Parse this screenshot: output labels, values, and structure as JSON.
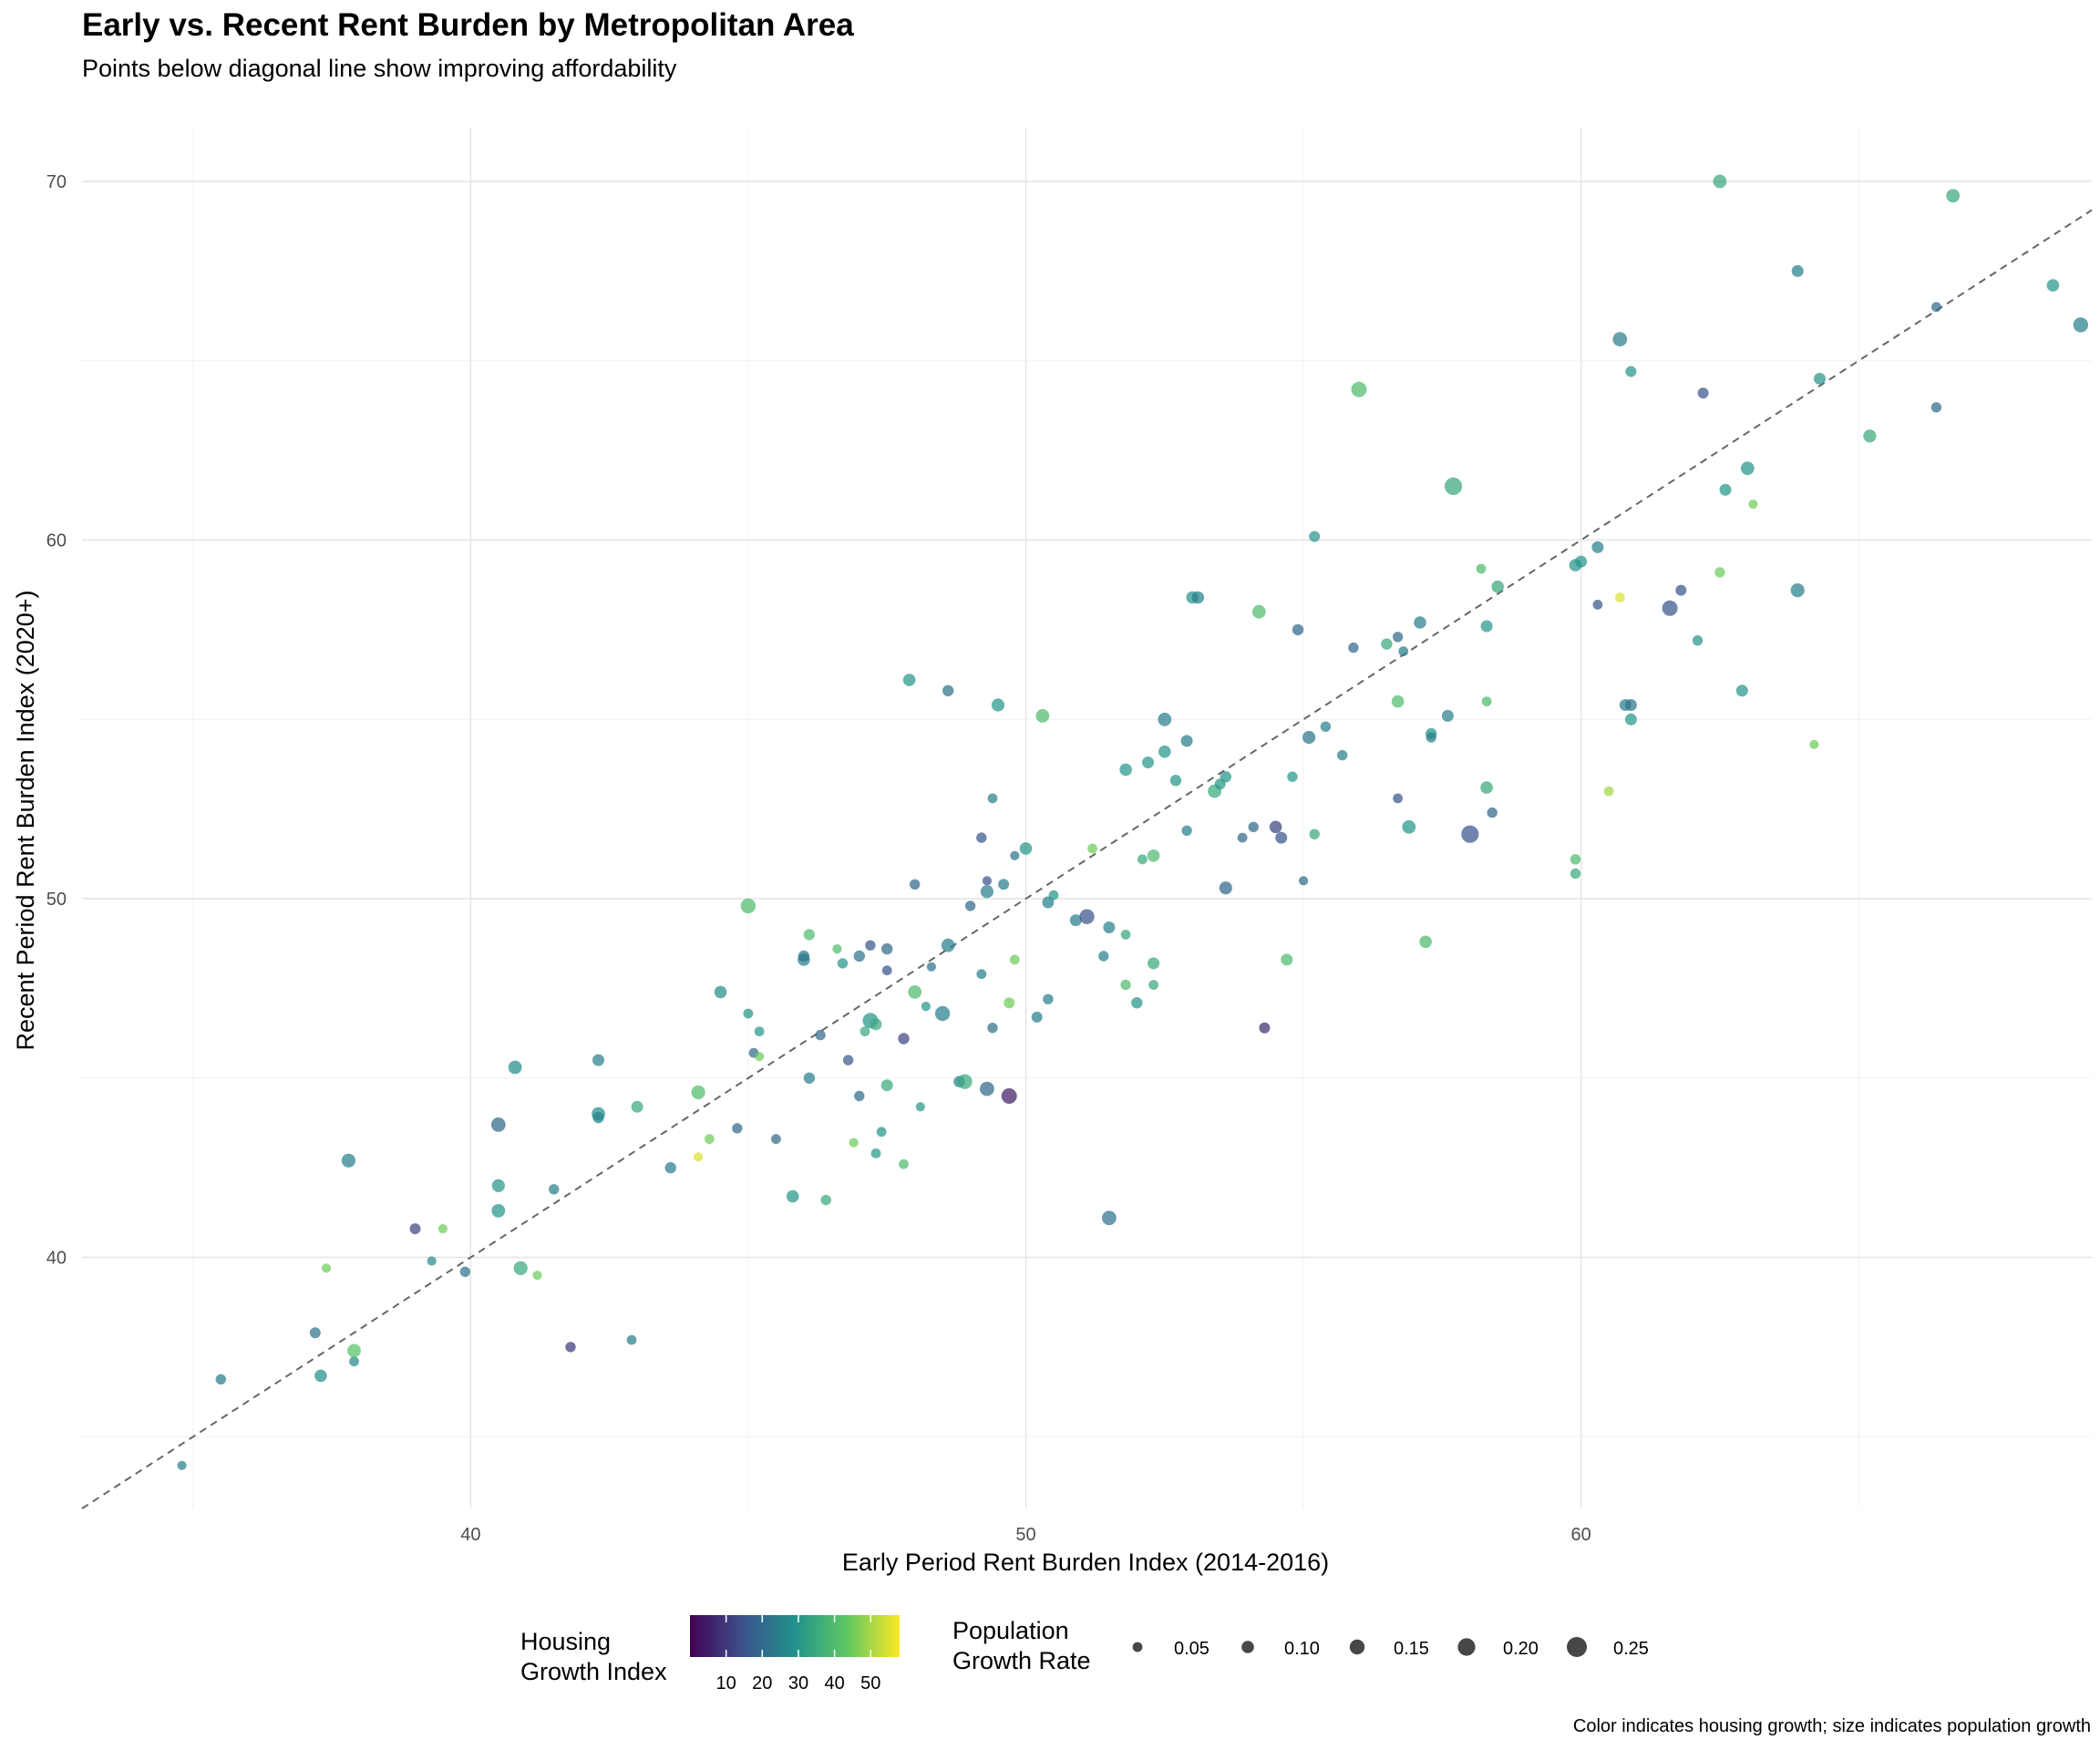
{
  "chart_data": {
    "type": "scatter",
    "title": "Early vs. Recent Rent Burden by Metropolitan Area",
    "subtitle": "Points below diagonal line show improving affordability",
    "caption": "Color indicates housing growth; size indicates population growth",
    "xlabel": "Early Period Rent Burden Index (2014-2016)",
    "ylabel": "Recent Period Rent Burden Index (2020+)",
    "xlim": [
      33,
      69.2
    ],
    "ylim": [
      33,
      71.5
    ],
    "x_ticks": [
      40,
      50,
      60
    ],
    "y_ticks": [
      40,
      50,
      60,
      70
    ],
    "grid": true,
    "reference_line": "y = x, dashed",
    "color_legend": {
      "title_lines": [
        "Housing",
        "Growth Index"
      ],
      "ticks": [
        10,
        20,
        30,
        40,
        50
      ],
      "range": [
        0,
        58
      ],
      "palette": "viridis"
    },
    "size_legend": {
      "title_lines": [
        "Population",
        "Growth Rate"
      ],
      "values": [
        0.05,
        0.1,
        0.15,
        0.2,
        0.25
      ],
      "labels": [
        "0.05",
        "0.10",
        "0.15",
        "0.20",
        "0.25"
      ],
      "range": [
        0,
        0.3
      ]
    },
    "legend_position": "bottom",
    "points": [
      [
        34.8,
        34.2,
        25,
        0.04
      ],
      [
        35.5,
        36.6,
        24,
        0.06
      ],
      [
        37.2,
        37.9,
        22,
        0.07
      ],
      [
        37.3,
        36.7,
        28,
        0.1
      ],
      [
        37.4,
        39.7,
        45,
        0.04
      ],
      [
        37.9,
        37.1,
        27,
        0.05
      ],
      [
        37.9,
        37.4,
        42,
        0.12
      ],
      [
        37.8,
        42.7,
        25,
        0.13
      ],
      [
        39.0,
        40.8,
        12,
        0.07
      ],
      [
        39.5,
        40.8,
        45,
        0.04
      ],
      [
        39.3,
        39.9,
        28,
        0.04
      ],
      [
        39.9,
        39.6,
        22,
        0.06
      ],
      [
        40.5,
        43.7,
        20,
        0.14
      ],
      [
        40.5,
        42.0,
        30,
        0.11
      ],
      [
        40.5,
        41.3,
        30,
        0.12
      ],
      [
        40.8,
        45.3,
        28,
        0.12
      ],
      [
        40.9,
        39.7,
        35,
        0.13
      ],
      [
        41.2,
        39.5,
        45,
        0.04
      ],
      [
        41.5,
        41.9,
        25,
        0.06
      ],
      [
        41.8,
        37.5,
        10,
        0.06
      ],
      [
        42.3,
        44.0,
        28,
        0.12
      ],
      [
        42.3,
        43.9,
        26,
        0.08
      ],
      [
        42.3,
        45.5,
        25,
        0.09
      ],
      [
        42.9,
        37.7,
        25,
        0.05
      ],
      [
        43.0,
        44.2,
        35,
        0.09
      ],
      [
        43.6,
        42.5,
        24,
        0.08
      ],
      [
        44.1,
        42.8,
        55,
        0.04
      ],
      [
        44.1,
        44.6,
        40,
        0.13
      ],
      [
        44.3,
        43.3,
        45,
        0.05
      ],
      [
        44.5,
        47.4,
        28,
        0.1
      ],
      [
        44.8,
        43.6,
        20,
        0.06
      ],
      [
        45.0,
        46.8,
        30,
        0.05
      ],
      [
        45.1,
        45.7,
        20,
        0.05
      ],
      [
        45.0,
        49.8,
        40,
        0.15
      ],
      [
        45.2,
        45.6,
        45,
        0.04
      ],
      [
        45.2,
        46.3,
        30,
        0.05
      ],
      [
        45.5,
        43.3,
        20,
        0.05
      ],
      [
        45.8,
        41.7,
        30,
        0.1
      ],
      [
        46.0,
        48.3,
        25,
        0.1
      ],
      [
        46.0,
        48.4,
        22,
        0.08
      ],
      [
        46.1,
        45.0,
        25,
        0.08
      ],
      [
        46.1,
        49.0,
        40,
        0.08
      ],
      [
        46.3,
        46.2,
        20,
        0.06
      ],
      [
        46.4,
        41.6,
        35,
        0.06
      ],
      [
        46.6,
        48.6,
        40,
        0.04
      ],
      [
        46.7,
        48.2,
        30,
        0.06
      ],
      [
        46.9,
        43.2,
        45,
        0.04
      ],
      [
        47.2,
        48.7,
        16,
        0.06
      ],
      [
        47.0,
        48.4,
        22,
        0.08
      ],
      [
        46.8,
        45.5,
        16,
        0.06
      ],
      [
        47.0,
        44.5,
        20,
        0.06
      ],
      [
        47.2,
        46.6,
        30,
        0.16
      ],
      [
        47.3,
        46.5,
        35,
        0.09
      ],
      [
        47.1,
        46.3,
        35,
        0.05
      ],
      [
        47.3,
        42.9,
        30,
        0.05
      ],
      [
        47.5,
        48.6,
        20,
        0.08
      ],
      [
        47.5,
        48.0,
        15,
        0.05
      ],
      [
        47.4,
        43.5,
        30,
        0.05
      ],
      [
        47.5,
        44.8,
        35,
        0.09
      ],
      [
        47.8,
        42.6,
        40,
        0.05
      ],
      [
        47.8,
        46.1,
        12,
        0.08
      ],
      [
        47.9,
        56.1,
        30,
        0.1
      ],
      [
        48.0,
        47.4,
        40,
        0.12
      ],
      [
        48.0,
        50.4,
        20,
        0.06
      ],
      [
        48.2,
        47.0,
        30,
        0.04
      ],
      [
        48.1,
        44.2,
        30,
        0.04
      ],
      [
        48.3,
        48.1,
        22,
        0.04
      ],
      [
        48.5,
        46.8,
        25,
        0.15
      ],
      [
        48.6,
        48.7,
        25,
        0.12
      ],
      [
        48.6,
        55.8,
        22,
        0.08
      ],
      [
        48.8,
        44.9,
        25,
        0.08
      ],
      [
        48.9,
        44.9,
        35,
        0.15
      ],
      [
        49.0,
        49.8,
        20,
        0.06
      ],
      [
        49.3,
        44.7,
        20,
        0.14
      ],
      [
        49.2,
        51.7,
        16,
        0.06
      ],
      [
        49.2,
        47.9,
        25,
        0.05
      ],
      [
        49.4,
        52.8,
        25,
        0.05
      ],
      [
        49.3,
        50.5,
        15,
        0.04
      ],
      [
        49.3,
        50.2,
        25,
        0.11
      ],
      [
        49.4,
        46.4,
        22,
        0.06
      ],
      [
        49.5,
        55.4,
        30,
        0.11
      ],
      [
        49.6,
        50.4,
        25,
        0.07
      ],
      [
        49.7,
        44.5,
        5,
        0.16
      ],
      [
        49.7,
        47.1,
        45,
        0.07
      ],
      [
        49.8,
        48.3,
        45,
        0.05
      ],
      [
        49.8,
        51.2,
        22,
        0.04
      ],
      [
        50.0,
        51.4,
        30,
        0.1
      ],
      [
        50.2,
        46.7,
        25,
        0.07
      ],
      [
        50.3,
        55.1,
        40,
        0.12
      ],
      [
        50.4,
        47.2,
        25,
        0.06
      ],
      [
        50.4,
        49.9,
        25,
        0.09
      ],
      [
        50.5,
        50.1,
        30,
        0.05
      ],
      [
        50.9,
        49.4,
        25,
        0.09
      ],
      [
        51.1,
        49.5,
        15,
        0.15
      ],
      [
        51.2,
        51.4,
        45,
        0.05
      ],
      [
        51.4,
        48.4,
        25,
        0.06
      ],
      [
        51.5,
        49.2,
        25,
        0.09
      ],
      [
        51.5,
        41.1,
        22,
        0.14
      ],
      [
        51.8,
        53.6,
        30,
        0.1
      ],
      [
        51.8,
        49.0,
        35,
        0.05
      ],
      [
        51.8,
        47.6,
        40,
        0.06
      ],
      [
        52.0,
        47.1,
        30,
        0.08
      ],
      [
        52.1,
        51.1,
        35,
        0.05
      ],
      [
        52.2,
        53.8,
        30,
        0.09
      ],
      [
        52.3,
        48.2,
        35,
        0.09
      ],
      [
        52.3,
        51.2,
        40,
        0.1
      ],
      [
        52.3,
        47.6,
        35,
        0.05
      ],
      [
        52.5,
        54.1,
        30,
        0.1
      ],
      [
        52.5,
        55.0,
        25,
        0.12
      ],
      [
        52.7,
        53.3,
        30,
        0.08
      ],
      [
        52.9,
        54.4,
        25,
        0.09
      ],
      [
        52.9,
        51.9,
        25,
        0.06
      ],
      [
        53.0,
        58.4,
        30,
        0.1
      ],
      [
        53.1,
        58.4,
        25,
        0.1
      ],
      [
        53.4,
        53.0,
        35,
        0.12
      ],
      [
        53.5,
        53.2,
        30,
        0.07
      ],
      [
        53.6,
        53.4,
        30,
        0.08
      ],
      [
        53.6,
        50.3,
        20,
        0.11
      ],
      [
        53.9,
        51.7,
        20,
        0.05
      ],
      [
        54.1,
        52.0,
        20,
        0.06
      ],
      [
        54.2,
        58.0,
        40,
        0.12
      ],
      [
        54.3,
        46.4,
        8,
        0.07
      ],
      [
        54.5,
        52.0,
        12,
        0.1
      ],
      [
        54.6,
        51.7,
        15,
        0.09
      ],
      [
        54.7,
        48.3,
        40,
        0.09
      ],
      [
        54.8,
        53.4,
        30,
        0.06
      ],
      [
        54.9,
        57.5,
        20,
        0.08
      ],
      [
        55.0,
        50.5,
        20,
        0.04
      ],
      [
        55.1,
        54.5,
        22,
        0.11
      ],
      [
        55.2,
        60.1,
        30,
        0.07
      ],
      [
        55.2,
        51.8,
        35,
        0.06
      ],
      [
        55.4,
        54.8,
        25,
        0.06
      ],
      [
        55.7,
        54.0,
        25,
        0.06
      ],
      [
        55.9,
        57.0,
        20,
        0.06
      ],
      [
        56.0,
        64.2,
        40,
        0.16
      ],
      [
        56.5,
        57.1,
        35,
        0.08
      ],
      [
        56.7,
        57.3,
        20,
        0.06
      ],
      [
        56.7,
        55.5,
        40,
        0.1
      ],
      [
        56.7,
        52.8,
        15,
        0.05
      ],
      [
        56.8,
        56.9,
        25,
        0.05
      ],
      [
        56.9,
        52.0,
        30,
        0.12
      ],
      [
        57.1,
        57.7,
        25,
        0.1
      ],
      [
        57.2,
        48.8,
        40,
        0.1
      ],
      [
        57.3,
        54.6,
        30,
        0.08
      ],
      [
        57.3,
        54.5,
        25,
        0.06
      ],
      [
        57.6,
        55.1,
        25,
        0.09
      ],
      [
        57.7,
        61.5,
        35,
        0.2
      ],
      [
        58.0,
        51.8,
        15,
        0.2
      ],
      [
        58.2,
        59.2,
        40,
        0.05
      ],
      [
        58.3,
        55.5,
        40,
        0.05
      ],
      [
        58.3,
        53.1,
        35,
        0.1
      ],
      [
        58.3,
        57.6,
        30,
        0.09
      ],
      [
        58.4,
        52.4,
        20,
        0.06
      ],
      [
        58.5,
        58.7,
        35,
        0.1
      ],
      [
        59.9,
        50.7,
        35,
        0.06
      ],
      [
        59.9,
        51.1,
        40,
        0.06
      ],
      [
        59.9,
        59.3,
        30,
        0.1
      ],
      [
        60.0,
        59.4,
        30,
        0.09
      ],
      [
        60.3,
        58.2,
        15,
        0.05
      ],
      [
        60.3,
        59.8,
        25,
        0.09
      ],
      [
        60.5,
        53.0,
        50,
        0.05
      ],
      [
        60.7,
        58.4,
        55,
        0.05
      ],
      [
        60.7,
        65.6,
        25,
        0.14
      ],
      [
        60.8,
        55.4,
        25,
        0.09
      ],
      [
        60.9,
        55.4,
        22,
        0.09
      ],
      [
        60.9,
        64.7,
        30,
        0.07
      ],
      [
        60.9,
        55.0,
        30,
        0.09
      ],
      [
        61.6,
        58.1,
        15,
        0.16
      ],
      [
        61.8,
        58.6,
        15,
        0.07
      ],
      [
        62.1,
        57.2,
        30,
        0.06
      ],
      [
        62.2,
        64.1,
        15,
        0.07
      ],
      [
        62.5,
        59.1,
        45,
        0.06
      ],
      [
        62.5,
        70.0,
        35,
        0.12
      ],
      [
        62.6,
        61.4,
        30,
        0.09
      ],
      [
        62.9,
        55.8,
        30,
        0.09
      ],
      [
        63.0,
        62.0,
        30,
        0.12
      ],
      [
        63.1,
        61.0,
        45,
        0.04
      ],
      [
        63.9,
        67.5,
        25,
        0.09
      ],
      [
        63.9,
        58.6,
        25,
        0.13
      ],
      [
        64.2,
        54.3,
        45,
        0.04
      ],
      [
        64.3,
        64.5,
        30,
        0.09
      ],
      [
        65.2,
        62.9,
        35,
        0.11
      ],
      [
        66.4,
        66.5,
        20,
        0.05
      ],
      [
        66.4,
        63.7,
        20,
        0.06
      ],
      [
        66.7,
        69.6,
        35,
        0.12
      ],
      [
        68.5,
        67.1,
        30,
        0.1
      ],
      [
        69.0,
        66.0,
        25,
        0.15
      ]
    ]
  }
}
